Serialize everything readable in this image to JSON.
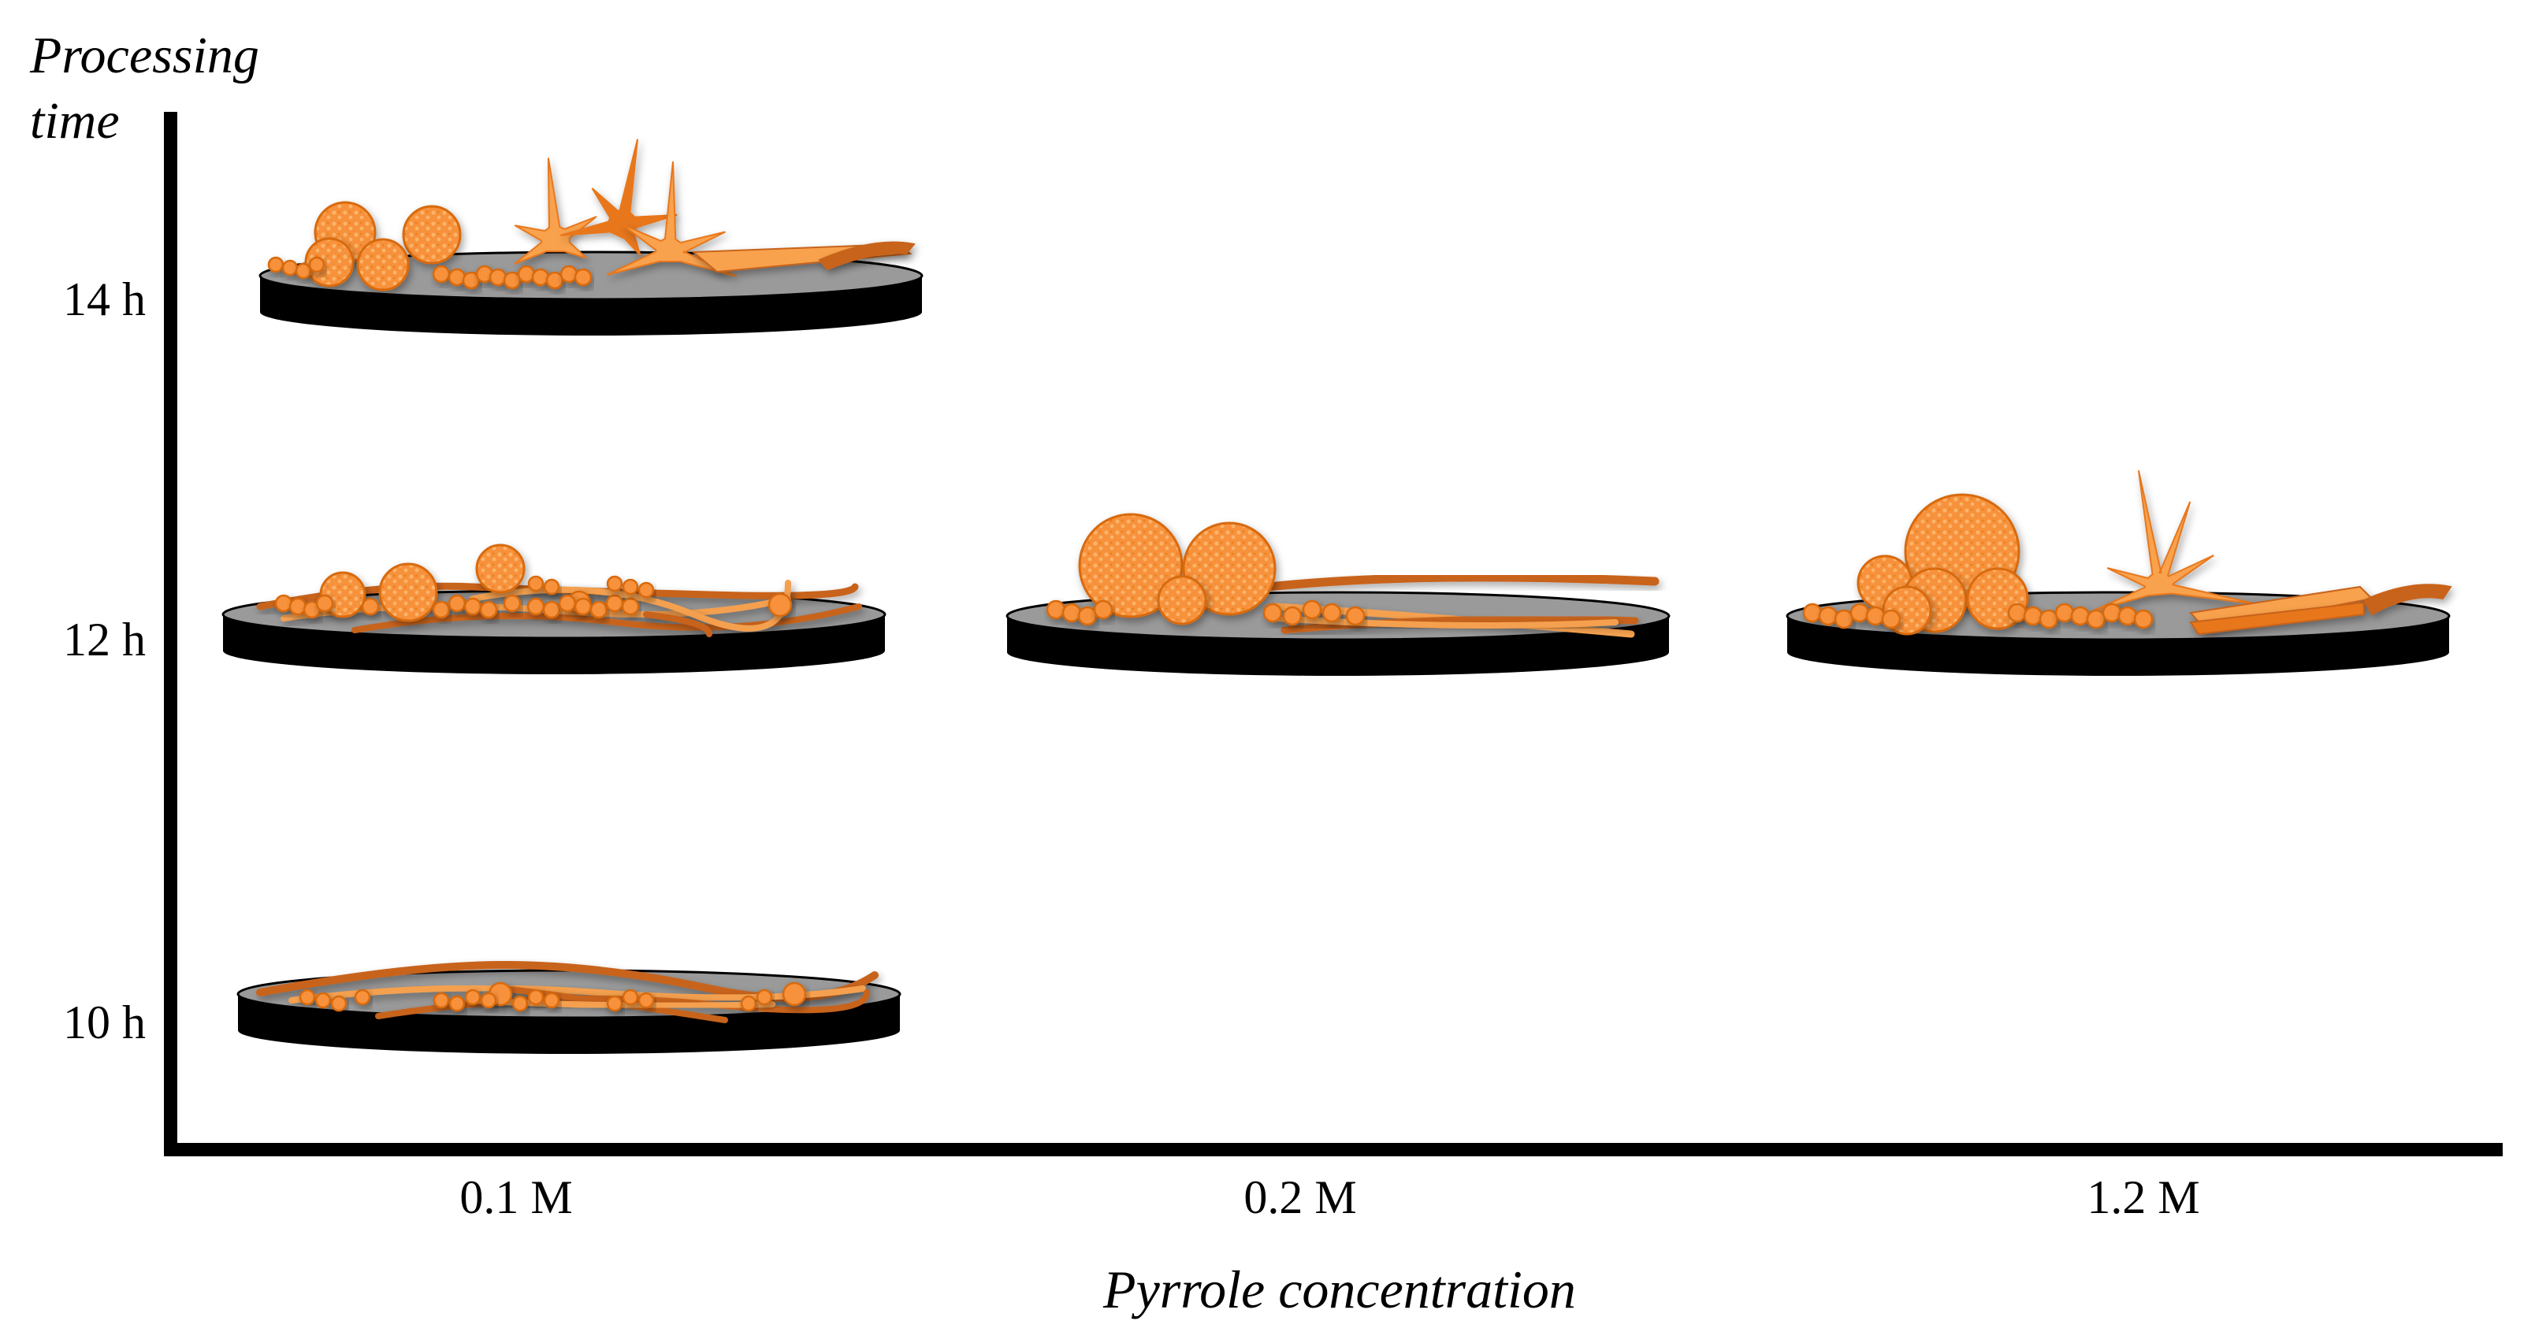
{
  "y_axis": {
    "title_line1": "Processing",
    "title_line2": "time",
    "ticks": [
      "14 h",
      "12 h",
      "10 h"
    ]
  },
  "x_axis": {
    "title": "Pyrrole concentration",
    "ticks": [
      "0.1 M",
      "0.2 M",
      "1.2 M"
    ]
  },
  "colors": {
    "particle_fill": "#F7913A",
    "particle_stroke": "#D86A10",
    "fiber_dark": "#C8631A",
    "fiber_light": "#F4A050",
    "star_light": "#F9A24E",
    "star_dark": "#E8771A",
    "disc_top": "#9A9A9A",
    "disc_side": "#000000",
    "axis": "#000000"
  },
  "samples": [
    {
      "time": "14 h",
      "concentration": "0.1 M",
      "morphology": [
        "spheres",
        "stars",
        "ribbons"
      ]
    },
    {
      "time": "12 h",
      "concentration": "0.1 M",
      "morphology": [
        "spheres",
        "fibers"
      ]
    },
    {
      "time": "12 h",
      "concentration": "0.2 M",
      "morphology": [
        "large-spheres",
        "fibers"
      ]
    },
    {
      "time": "12 h",
      "concentration": "1.2 M",
      "morphology": [
        "spheres",
        "stars",
        "ribbons"
      ]
    },
    {
      "time": "10 h",
      "concentration": "0.1 M",
      "morphology": [
        "fibers",
        "small-particles"
      ]
    }
  ]
}
